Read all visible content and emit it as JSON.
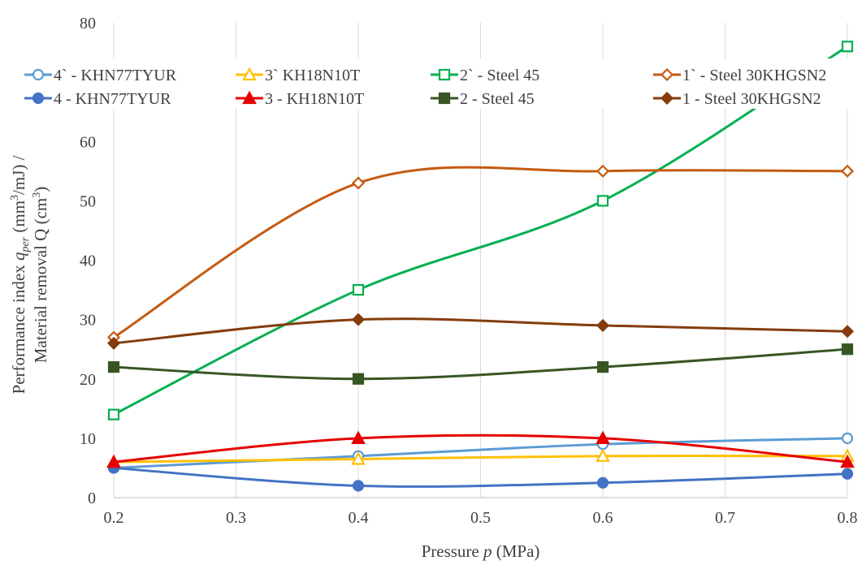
{
  "chart_data": {
    "type": "line",
    "title": "",
    "xlabel": "Pressure p (MPa)",
    "xlabel_parts": [
      "Pressure ",
      "p",
      " (MPa)"
    ],
    "ylabel_line1": "Performance index q_per (mm³/mJ) /",
    "ylabel_line1_parts": [
      "Performance index ",
      "q",
      "per",
      " (mm",
      "3",
      "/mJ) /"
    ],
    "ylabel_line2": "Material removal Q (cm³)",
    "ylabel_line2_parts": [
      "Material removal Q (cm",
      "3",
      ")"
    ],
    "xlim": [
      0.2,
      0.8
    ],
    "ylim": [
      0,
      80
    ],
    "xticks": [
      "0.2",
      "0.3",
      "0.4",
      "0.5",
      "0.6",
      "0.7",
      "0.8"
    ],
    "yticks": [
      "0",
      "10",
      "20",
      "30",
      "40",
      "50",
      "60",
      "80"
    ],
    "grid": "vertical",
    "legend_position": "top",
    "x": [
      0.2,
      0.4,
      0.6,
      0.8
    ],
    "series": [
      {
        "name": "4` - KHN77TYUR",
        "values": [
          5,
          7,
          9,
          10
        ],
        "color": "#5b9bd5",
        "marker": "circle",
        "filled": false
      },
      {
        "name": "3` KH18N10T",
        "values": [
          6,
          6.5,
          7,
          7
        ],
        "color": "#ffc000",
        "marker": "triangle",
        "filled": false
      },
      {
        "name": "2` - Steel 45",
        "values": [
          14,
          35,
          50,
          76
        ],
        "color": "#00b050",
        "marker": "square",
        "filled": false
      },
      {
        "name": "1` - Steel 30KHGSN2",
        "values": [
          27,
          53,
          55,
          55
        ],
        "color": "#c55a11",
        "marker": "diamond",
        "filled": false
      },
      {
        "name": "4 - KHN77TYUR",
        "values": [
          5,
          2,
          2.5,
          4
        ],
        "color": "#4472c4",
        "marker": "circle",
        "filled": true
      },
      {
        "name": "3 - KH18N10T",
        "values": [
          6,
          10,
          10,
          6
        ],
        "color": "#e60000",
        "marker": "triangle",
        "filled": true
      },
      {
        "name": "2 - Steel 45",
        "values": [
          22,
          20,
          22,
          25
        ],
        "color": "#375623",
        "marker": "square",
        "filled": true
      },
      {
        "name": "1 - Steel 30KHGSN2",
        "values": [
          26,
          30,
          29,
          28
        ],
        "color": "#843c0c",
        "marker": "diamond",
        "filled": true
      }
    ]
  }
}
